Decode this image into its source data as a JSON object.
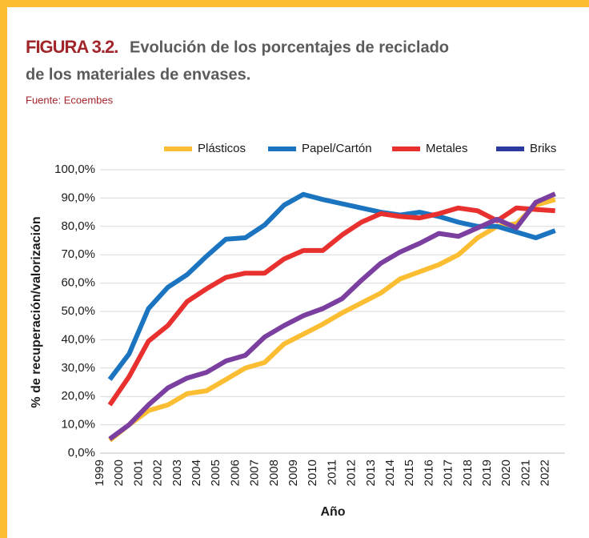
{
  "chart_data": {
    "type": "line",
    "figure_label": "FIGURA 3.2.",
    "title": [
      "Evolución de los porcentajes de reciclado",
      "de los materiales de envases."
    ],
    "source": "Fuente: Ecoembes",
    "x_label": "Año",
    "y_label": "% de recuperación/valorización",
    "categories": [
      "1999",
      "2000",
      "2001",
      "2002",
      "2003",
      "2004",
      "2005",
      "2006",
      "2007",
      "2008",
      "2009",
      "2010",
      "2011",
      "2012",
      "2013",
      "2014",
      "2015",
      "2016",
      "2017",
      "2018",
      "2019",
      "2020",
      "2021",
      "2022"
    ],
    "ylim": [
      0,
      100
    ],
    "yticks": [
      {
        "value": 0,
        "label": "0,0%"
      },
      {
        "value": 10,
        "label": "10,0%"
      },
      {
        "value": 20,
        "label": "20,0%"
      },
      {
        "value": 30,
        "label": "30,0%"
      },
      {
        "value": 40,
        "label": "40,0%"
      },
      {
        "value": 50,
        "label": "50,0%"
      },
      {
        "value": 60,
        "label": "60,0%"
      },
      {
        "value": 70,
        "label": "70,0%"
      },
      {
        "value": 80,
        "label": "80,0%"
      },
      {
        "value": 90,
        "label": "90,0%"
      },
      {
        "value": 100,
        "label": "100,0%"
      }
    ],
    "grid": true,
    "legend": "top",
    "series": [
      {
        "name": "Plásticos",
        "color": "#fbbd32",
        "legend_color": "#fbbd32",
        "values": [
          4.5,
          10,
          15,
          17,
          21,
          22,
          26,
          30,
          32,
          38.5,
          42,
          45.5,
          49.5,
          53,
          56.5,
          61.5,
          64,
          66.5,
          70,
          76,
          80,
          81,
          87.5,
          89.5
        ]
      },
      {
        "name": "Papel/Cartón",
        "color": "#1b74bf",
        "legend_color": "#1b74bf",
        "values": [
          26,
          35,
          51,
          58.5,
          63,
          69.5,
          75.5,
          76,
          80.5,
          87.5,
          91.3,
          89.5,
          88,
          86.5,
          85,
          84,
          85,
          83.5,
          81.5,
          80,
          80,
          78,
          76,
          78.5
        ]
      },
      {
        "name": "Metales",
        "color": "#e8312f",
        "legend_color": "#e8312f",
        "values": [
          17,
          27,
          39.5,
          45,
          53.5,
          58,
          62,
          63.5,
          63.5,
          68.5,
          71.5,
          71.5,
          77,
          81.5,
          84.5,
          83.5,
          83,
          84.5,
          86.5,
          85.5,
          82,
          86.5,
          86,
          85.5
        ]
      },
      {
        "name": "Briks",
        "color": "#7b3fa0",
        "legend_color": "#2b3a9c",
        "values": [
          5,
          10,
          17,
          23,
          26.5,
          28.5,
          32.5,
          34.5,
          41,
          45,
          48.5,
          51,
          54.5,
          61,
          67,
          71,
          74,
          77.5,
          76.5,
          79.5,
          82.5,
          79.5,
          88.5,
          91.5
        ]
      }
    ]
  }
}
